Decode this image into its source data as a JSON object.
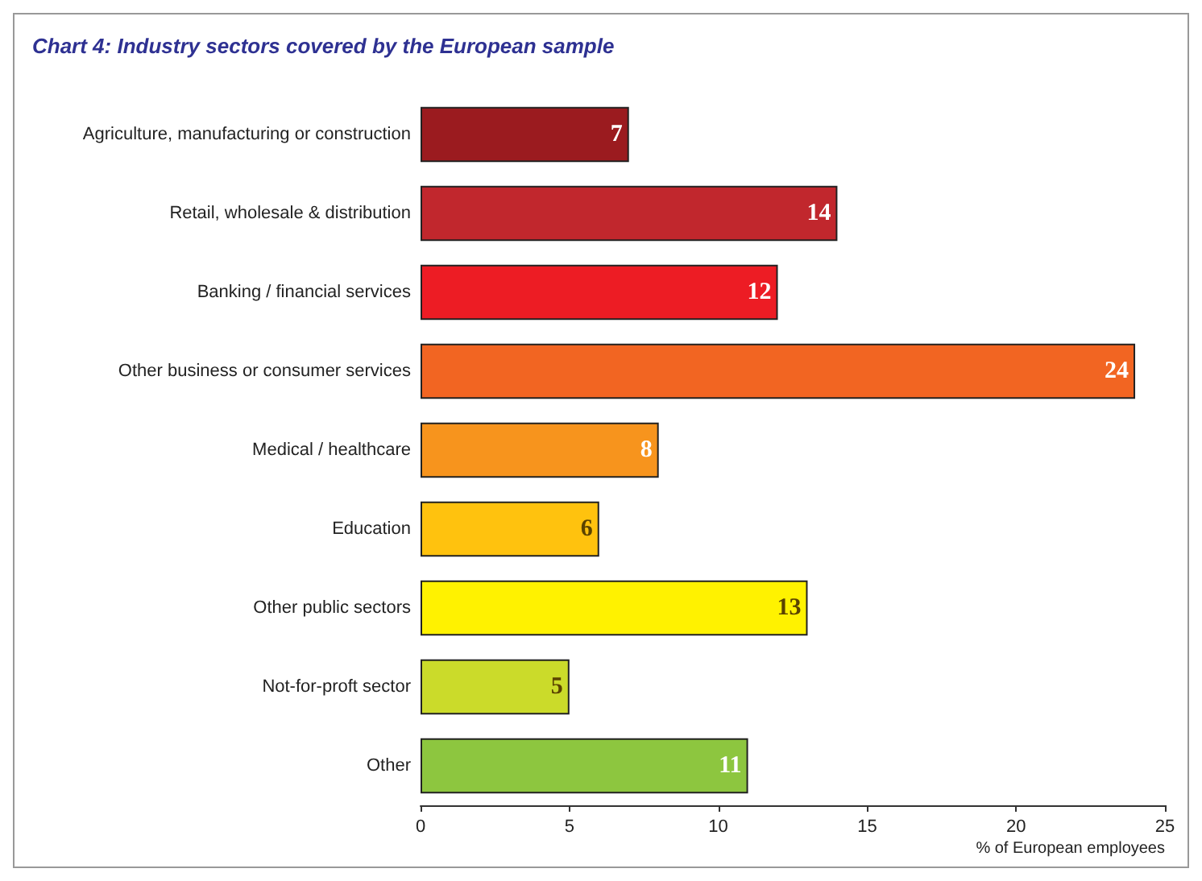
{
  "chart_data": {
    "type": "bar",
    "orientation": "horizontal",
    "title": "Chart 4: Industry sectors covered by the European sample",
    "xlabel": "% of European employees",
    "categories": [
      "Agriculture, manufacturing or construction",
      "Retail, wholesale & distribution",
      "Banking / financial services",
      "Other business or consumer services",
      "Medical / healthcare",
      "Education",
      "Other public sectors",
      "Not-for-proft sector",
      "Other"
    ],
    "values": [
      7,
      14,
      12,
      24,
      8,
      6,
      13,
      5,
      11
    ],
    "colors": [
      "#9b1b1f",
      "#c1272d",
      "#ed1c24",
      "#f26522",
      "#f7941d",
      "#ffc20e",
      "#fff200",
      "#cbdb2a",
      "#8dc63f"
    ],
    "xlim": [
      0,
      25
    ],
    "xticks": [
      0,
      5,
      10,
      15,
      20,
      25
    ],
    "data_labels": true,
    "grid": false
  }
}
